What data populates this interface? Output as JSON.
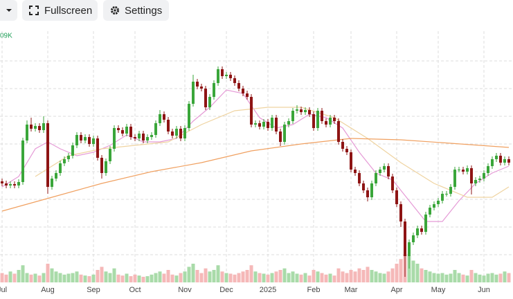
{
  "toolbar": {
    "buttons": [
      "Fullscreen",
      "Settings"
    ]
  },
  "chart_data": {
    "type": "candlestick",
    "corner_label": "09K",
    "categories": [
      "Jul",
      null,
      null,
      null,
      null,
      null,
      null,
      null,
      null,
      null,
      null,
      "Aug",
      null,
      null,
      null,
      null,
      null,
      null,
      null,
      null,
      null,
      null,
      "Sep",
      null,
      null,
      null,
      null,
      null,
      null,
      null,
      null,
      null,
      "Oct",
      null,
      null,
      null,
      null,
      null,
      null,
      null,
      null,
      null,
      null,
      null,
      "Nov",
      null,
      null,
      null,
      null,
      null,
      null,
      null,
      null,
      null,
      "Dec",
      null,
      null,
      null,
      null,
      null,
      null,
      null,
      null,
      null,
      "2025",
      null,
      null,
      null,
      null,
      null,
      null,
      null,
      null,
      null,
      null,
      "Feb",
      null,
      null,
      null,
      null,
      null,
      null,
      null,
      null,
      "Mar",
      null,
      null,
      null,
      null,
      null,
      null,
      null,
      null,
      null,
      null,
      "Apr",
      null,
      null,
      null,
      null,
      null,
      null,
      null,
      null,
      null,
      "May",
      null,
      null,
      null,
      null,
      null,
      null,
      null,
      null,
      null,
      null,
      "Jun",
      null,
      null,
      null,
      null,
      null,
      null
    ],
    "open": [
      146,
      143,
      140,
      142,
      140,
      145,
      205,
      228,
      222,
      226,
      220,
      230,
      138,
      150,
      158,
      172,
      178,
      183,
      198,
      213,
      205,
      210,
      200,
      208,
      180,
      158,
      175,
      193,
      223,
      220,
      215,
      225,
      210,
      208,
      215,
      205,
      210,
      213,
      230,
      243,
      235,
      218,
      212,
      222,
      208,
      223,
      258,
      290,
      283,
      280,
      253,
      268,
      288,
      308,
      298,
      300,
      295,
      288,
      280,
      273,
      268,
      228,
      230,
      225,
      232,
      223,
      238,
      218,
      203,
      228,
      233,
      248,
      250,
      246,
      249,
      243,
      223,
      248,
      233,
      228,
      238,
      233,
      203,
      193,
      188,
      163,
      158,
      143,
      133,
      123,
      143,
      158,
      163,
      168,
      153,
      133,
      113,
      88,
      38,
      58,
      68,
      78,
      73,
      98,
      108,
      113,
      118,
      128,
      128,
      138,
      163,
      163,
      160,
      165,
      143,
      148,
      150,
      158,
      168,
      178,
      183,
      173,
      178
    ],
    "high": [
      150,
      147,
      146,
      146,
      149,
      209,
      234,
      238,
      230,
      230,
      240,
      234,
      154,
      162,
      176,
      182,
      187,
      202,
      217,
      217,
      214,
      214,
      212,
      212,
      184,
      179,
      197,
      227,
      227,
      224,
      229,
      229,
      214,
      219,
      219,
      214,
      217,
      234,
      249,
      247,
      239,
      222,
      226,
      226,
      227,
      262,
      300,
      294,
      287,
      284,
      272,
      292,
      312,
      312,
      304,
      304,
      299,
      292,
      284,
      277,
      272,
      234,
      234,
      236,
      236,
      242,
      242,
      222,
      232,
      237,
      252,
      256,
      254,
      253,
      253,
      247,
      252,
      252,
      237,
      242,
      242,
      237,
      207,
      197,
      192,
      167,
      162,
      147,
      137,
      147,
      162,
      167,
      172,
      172,
      157,
      137,
      117,
      92,
      62,
      72,
      82,
      82,
      102,
      112,
      117,
      122,
      132,
      132,
      142,
      167,
      167,
      167,
      169,
      169,
      152,
      154,
      162,
      172,
      182,
      187,
      187,
      182,
      182
    ],
    "low": [
      139,
      136,
      136,
      136,
      136,
      141,
      201,
      218,
      218,
      216,
      216,
      128,
      134,
      146,
      154,
      168,
      174,
      179,
      194,
      201,
      201,
      196,
      196,
      176,
      150,
      154,
      171,
      189,
      216,
      211,
      211,
      206,
      204,
      204,
      201,
      201,
      206,
      209,
      226,
      231,
      214,
      208,
      208,
      204,
      204,
      219,
      254,
      279,
      276,
      249,
      249,
      264,
      284,
      294,
      294,
      291,
      284,
      276,
      269,
      264,
      224,
      224,
      221,
      221,
      219,
      219,
      214,
      197,
      199,
      224,
      229,
      244,
      242,
      242,
      239,
      219,
      219,
      229,
      224,
      224,
      229,
      199,
      189,
      184,
      159,
      154,
      139,
      129,
      117,
      119,
      139,
      154,
      159,
      149,
      129,
      109,
      80,
      8,
      20,
      54,
      64,
      69,
      69,
      94,
      104,
      109,
      114,
      124,
      124,
      134,
      159,
      156,
      156,
      127,
      139,
      144,
      146,
      154,
      164,
      174,
      169,
      169,
      169
    ],
    "close": [
      143,
      140,
      142,
      140,
      145,
      205,
      228,
      222,
      226,
      220,
      230,
      138,
      150,
      158,
      172,
      178,
      183,
      198,
      213,
      205,
      210,
      200,
      208,
      180,
      158,
      175,
      193,
      223,
      220,
      215,
      225,
      210,
      208,
      215,
      205,
      210,
      213,
      230,
      243,
      235,
      218,
      212,
      222,
      208,
      223,
      258,
      290,
      283,
      280,
      253,
      268,
      288,
      308,
      298,
      300,
      295,
      288,
      280,
      273,
      268,
      228,
      230,
      225,
      232,
      223,
      238,
      218,
      203,
      228,
      233,
      248,
      250,
      246,
      249,
      243,
      223,
      248,
      233,
      228,
      238,
      233,
      203,
      193,
      188,
      163,
      158,
      143,
      133,
      123,
      143,
      158,
      163,
      168,
      153,
      133,
      113,
      88,
      38,
      58,
      68,
      78,
      73,
      98,
      108,
      113,
      118,
      128,
      128,
      138,
      163,
      163,
      160,
      165,
      143,
      148,
      150,
      158,
      168,
      178,
      183,
      173,
      178,
      173
    ],
    "volume": [
      30,
      25,
      35,
      28,
      40,
      55,
      30,
      25,
      28,
      22,
      30,
      60,
      45,
      35,
      30,
      25,
      28,
      30,
      35,
      25,
      22,
      20,
      25,
      40,
      50,
      35,
      30,
      45,
      25,
      22,
      28,
      20,
      25,
      22,
      18,
      20,
      25,
      30,
      35,
      28,
      40,
      25,
      22,
      30,
      35,
      50,
      60,
      40,
      30,
      45,
      35,
      40,
      55,
      35,
      30,
      28,
      25,
      30,
      35,
      40,
      55,
      35,
      30,
      28,
      25,
      30,
      35,
      40,
      45,
      30,
      35,
      28,
      25,
      30,
      22,
      40,
      35,
      30,
      25,
      28,
      22,
      45,
      35,
      30,
      40,
      35,
      45,
      40,
      50,
      40,
      35,
      30,
      28,
      35,
      45,
      60,
      75,
      90,
      85,
      70,
      60,
      45,
      40,
      35,
      30,
      28,
      30,
      25,
      28,
      40,
      30,
      25,
      22,
      40,
      30,
      25,
      22,
      28,
      30,
      25,
      28,
      35,
      30
    ],
    "ylim": [
      0,
      363
    ],
    "ygrid": [
      40,
      80,
      120,
      160,
      200,
      240,
      280,
      320
    ],
    "vlim": [
      0,
      100
    ],
    "grid": true,
    "up_color": "#3aa63a",
    "down_color": "#8e1414",
    "up_volume_color": "#a9dba9",
    "down_volume_color": "#f5b8b8",
    "ma": [
      {
        "color": "#e59ad6",
        "x": [
          0,
          4,
          8,
          11,
          14,
          18,
          22,
          26,
          30,
          34,
          38,
          42,
          46,
          50,
          54,
          58,
          62,
          66,
          70,
          74,
          78,
          82,
          86,
          90,
          94,
          98,
          102,
          106,
          110,
          114,
          118,
          122
        ],
        "values": [
          138,
          153,
          193,
          203,
          193,
          183,
          188,
          198,
          213,
          203,
          203,
          208,
          233,
          253,
          278,
          273,
          238,
          223,
          228,
          243,
          238,
          223,
          188,
          158,
          148,
          118,
          88,
          88,
          118,
          143,
          158,
          168
        ]
      },
      {
        "color": "#efd3a0",
        "x": [
          8,
          16,
          24,
          32,
          40,
          48,
          56,
          64,
          72,
          80,
          88,
          96,
          104,
          112,
          118,
          122
        ],
        "values": [
          153,
          183,
          193,
          198,
          203,
          228,
          248,
          253,
          253,
          238,
          208,
          173,
          143,
          123,
          123,
          138
        ]
      },
      {
        "color": "#f0a060",
        "x": [
          0,
          12,
          24,
          36,
          48,
          60,
          72,
          84,
          96,
          108,
          122
        ],
        "values": [
          103,
          123,
          143,
          160,
          173,
          190,
          200,
          208,
          206,
          201,
          195
        ]
      }
    ]
  }
}
